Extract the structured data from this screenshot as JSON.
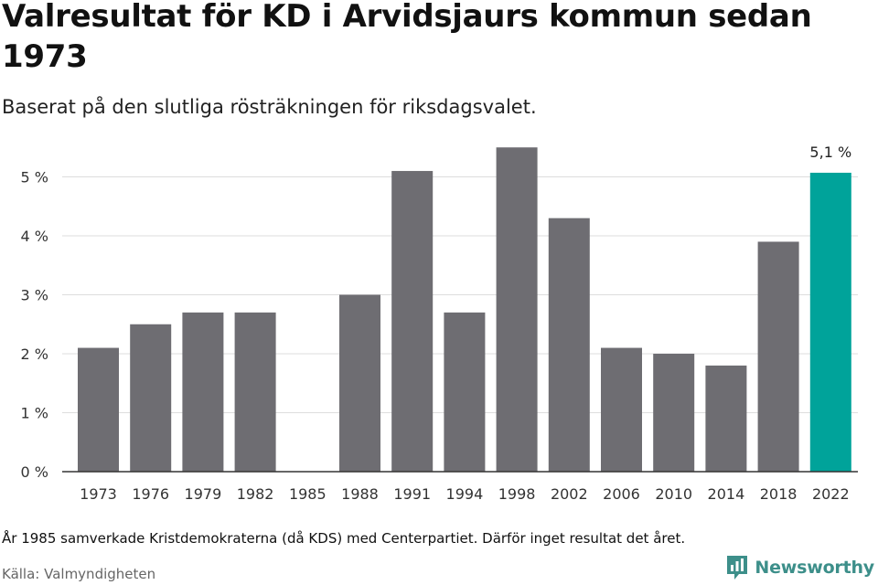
{
  "title": "Valresultat för KD i Arvidsjaurs kommun sedan 1973",
  "subtitle": "Baserat på den slutliga rösträkningen för riksdagsvalet.",
  "footnote": "År 1985 samverkade Kristdemokraterna (då KDS) med Centerpartiet. Därför inget resultat det året.",
  "source": "Källa: Valmyndigheten",
  "brand": {
    "name": "Newsworthy",
    "icon": "newsworthy-logo-icon"
  },
  "colors": {
    "bar": "#6e6d72",
    "highlight": "#00a39a",
    "grid": "#dddddd",
    "axis": "#333333",
    "brand": "#3d8f8a"
  },
  "chart_data": {
    "type": "bar",
    "title": "Valresultat för KD i Arvidsjaurs kommun sedan 1973",
    "subtitle": "Baserat på den slutliga rösträkningen för riksdagsvalet.",
    "xlabel": "",
    "ylabel": "",
    "unit": "%",
    "categories": [
      "1973",
      "1976",
      "1979",
      "1982",
      "1985",
      "1988",
      "1991",
      "1994",
      "1998",
      "2002",
      "2006",
      "2010",
      "2014",
      "2018",
      "2022"
    ],
    "values": [
      2.1,
      2.5,
      2.7,
      2.7,
      null,
      3.0,
      5.1,
      2.7,
      5.5,
      4.3,
      2.1,
      2.0,
      1.8,
      3.9,
      5.07
    ],
    "highlight_category": "2022",
    "data_labels": [
      {
        "category": "2022",
        "text": "5,1 %"
      }
    ],
    "ylim": [
      0,
      5.5
    ],
    "yticks": [
      0,
      1,
      2,
      3,
      4,
      5
    ],
    "ytick_labels": [
      "0 %",
      "1 %",
      "2 %",
      "3 %",
      "4 %",
      "5 %"
    ],
    "grid": true,
    "legend": "none"
  }
}
